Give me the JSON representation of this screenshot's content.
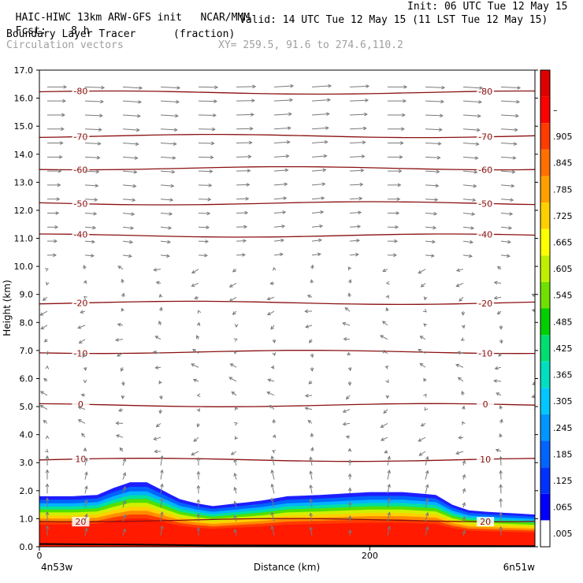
{
  "header": {
    "model": "HAIC-HIWC 13km ARW-GFS init",
    "org": "NCAR/MMM",
    "init": "Init: 06 UTC Tue 12 May 15",
    "fcst_label": "Fcst:",
    "fcst_value": "8 h",
    "valid": "Valid: 14 UTC Tue 12 May 15 (11 LST Tue 12 May 15)",
    "field_name": "Boundary Layer Tracer",
    "field_units": "(fraction)",
    "vectors_label": "Circulation vectors",
    "xy_label": "XY= 259.5, 91.6 to 274.6,110.2"
  },
  "chart_data": {
    "type": "cross-section",
    "ylabel": "Height (km)",
    "xlabel": "Distance (km)",
    "ylim": [
      0,
      17
    ],
    "y_ticks": [
      "0.0",
      "1.0",
      "2.0",
      "3.0",
      "4.0",
      "5.0",
      "6.0",
      "7.0",
      "8.0",
      "9.0",
      "10.0",
      "11.0",
      "12.0",
      "13.0",
      "14.0",
      "15.0",
      "16.0",
      "17.0"
    ],
    "xlim": [
      0,
      300
    ],
    "x_ticks": [
      {
        "value": 0,
        "label": "0"
      },
      {
        "value": 200,
        "label": "200"
      }
    ],
    "x_end_labels": {
      "left": "4n53w",
      "right": "6n51w"
    },
    "colorbar": {
      "labels": [
        ".005",
        ".065",
        ".125",
        ".185",
        ".245",
        ".305",
        ".365",
        ".425",
        ".485",
        ".545",
        ".605",
        ".665",
        ".725",
        ".785",
        ".845",
        ".905",
        "–"
      ],
      "colors": [
        "#ffffff",
        "#0000ff",
        "#0032ff",
        "#0064ff",
        "#0096ff",
        "#00c8ff",
        "#00e0c0",
        "#00e070",
        "#00d000",
        "#70e000",
        "#c0f000",
        "#ffff00",
        "#ffd000",
        "#ffa000",
        "#ff7000",
        "#ff3c00",
        "#ff0000",
        "#e00000"
      ]
    },
    "isotherms": [
      {
        "value": 20,
        "label": "20",
        "height_km": 0.95
      },
      {
        "value": 10,
        "label": "10",
        "height_km": 3.1
      },
      {
        "value": 0,
        "label": "0",
        "height_km": 5.05
      },
      {
        "value": -10,
        "label": "-10",
        "height_km": 6.95
      },
      {
        "value": -20,
        "label": "-20",
        "height_km": 8.7
      },
      {
        "value": -40,
        "label": "-40",
        "height_km": 11.1
      },
      {
        "value": -50,
        "label": "-50",
        "height_km": 12.25
      },
      {
        "value": -60,
        "label": "-60",
        "height_km": 13.5
      },
      {
        "value": -70,
        "label": "-70",
        "height_km": 14.65
      },
      {
        "value": -80,
        "label": "-80",
        "height_km": 16.2
      }
    ],
    "pbl_top_km": [
      [
        0,
        1.8
      ],
      [
        20,
        1.8
      ],
      [
        35,
        1.85
      ],
      [
        45,
        2.1
      ],
      [
        55,
        2.3
      ],
      [
        65,
        2.3
      ],
      [
        75,
        2.0
      ],
      [
        85,
        1.7
      ],
      [
        95,
        1.55
      ],
      [
        105,
        1.45
      ],
      [
        120,
        1.55
      ],
      [
        135,
        1.65
      ],
      [
        150,
        1.8
      ],
      [
        170,
        1.85
      ],
      [
        200,
        1.95
      ],
      [
        220,
        1.95
      ],
      [
        240,
        1.85
      ],
      [
        250,
        1.5
      ],
      [
        260,
        1.3
      ],
      [
        270,
        1.25
      ],
      [
        285,
        1.2
      ],
      [
        300,
        1.15
      ]
    ],
    "terrain_km": [
      [
        0,
        0.1
      ],
      [
        50,
        0.08
      ],
      [
        100,
        0.05
      ],
      [
        300,
        0.02
      ]
    ]
  }
}
